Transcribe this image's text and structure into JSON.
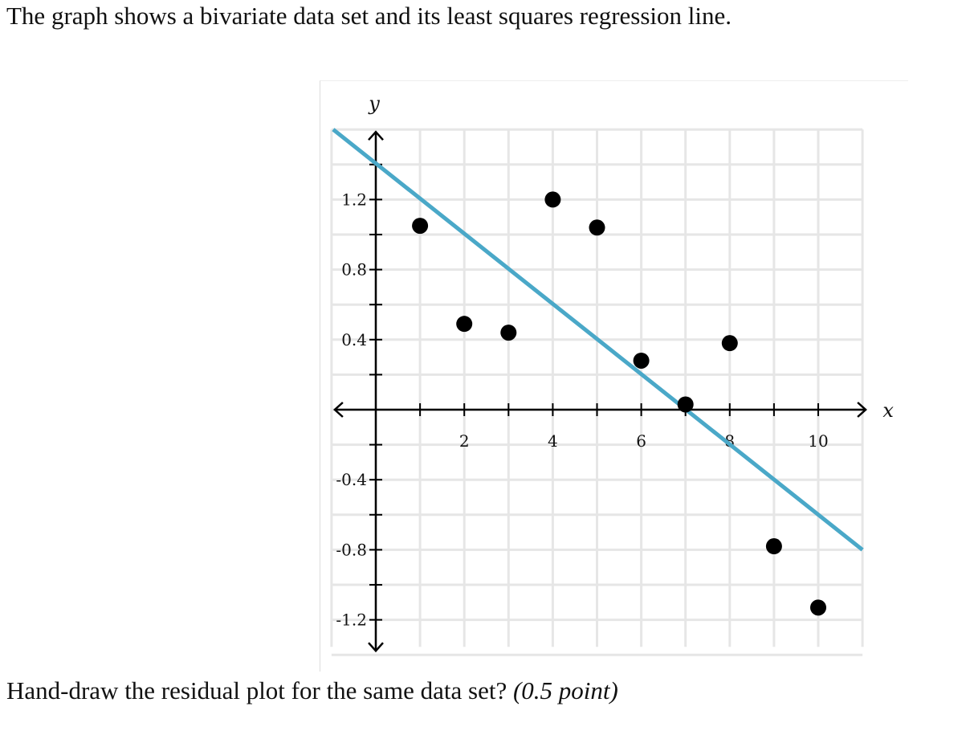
{
  "question": {
    "intro": "The graph shows a bivariate data set and its least squares regression line.",
    "prompt": "Hand-draw the residual plot for the same data set?",
    "points_note": "(0.5 point)"
  },
  "chart_data": {
    "type": "scatter",
    "xlabel": "x",
    "ylabel": "y",
    "xlim": [
      -1,
      11
    ],
    "ylim": [
      -1.4,
      1.6
    ],
    "grid": true,
    "x_grid_step": 1,
    "y_grid_step": 0.2,
    "x_tick_labels": [
      2,
      4,
      6,
      8,
      10
    ],
    "y_tick_labels": [
      "1.2",
      "0.8",
      "0.4",
      "-0.4",
      "-0.8",
      "-1.2"
    ],
    "y_tick_values": [
      1.2,
      0.8,
      0.4,
      -0.4,
      -0.8,
      -1.2
    ],
    "points": [
      {
        "x": 1,
        "y": 1.05
      },
      {
        "x": 2,
        "y": 0.49
      },
      {
        "x": 3,
        "y": 0.44
      },
      {
        "x": 4,
        "y": 1.2
      },
      {
        "x": 5,
        "y": 1.04
      },
      {
        "x": 6,
        "y": 0.28
      },
      {
        "x": 7,
        "y": 0.03
      },
      {
        "x": 8,
        "y": 0.38
      },
      {
        "x": 9,
        "y": -0.78
      },
      {
        "x": 10,
        "y": -1.13
      }
    ],
    "regression_line": {
      "slope": -0.2,
      "intercept": 1.4,
      "x_range": [
        -1,
        11
      ]
    },
    "colors": {
      "line": "#4aa8c8",
      "points": "#000000",
      "grid": "#e6e6e6",
      "axis": "#000000"
    }
  }
}
